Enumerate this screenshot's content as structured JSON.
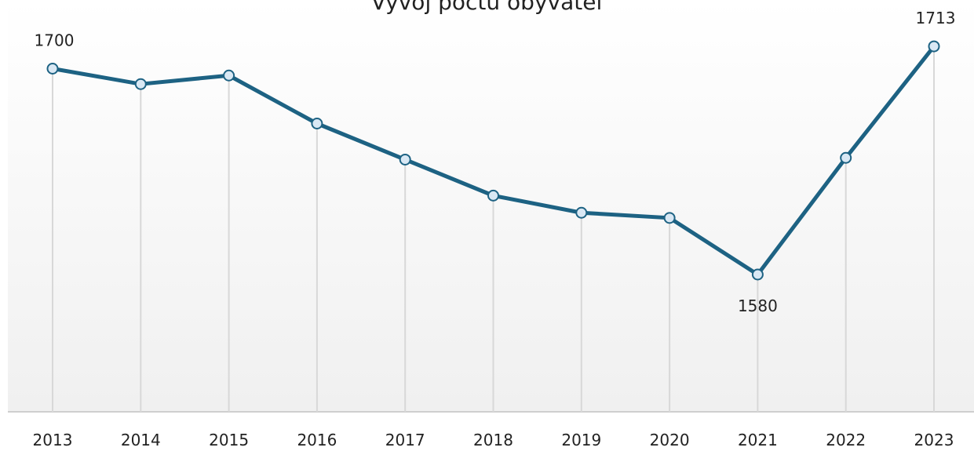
{
  "chart_data": {
    "type": "line",
    "title": "Vývoj počtu obyvatel",
    "categories": [
      "2013",
      "2014",
      "2015",
      "2016",
      "2017",
      "2018",
      "2019",
      "2020",
      "2021",
      "2022",
      "2023"
    ],
    "values": [
      1700,
      1691,
      1696,
      1668,
      1647,
      1626,
      1616,
      1613,
      1580,
      1648,
      1713
    ],
    "value_labels": [
      "1700",
      null,
      null,
      null,
      null,
      null,
      null,
      null,
      "1580",
      null,
      "1713"
    ],
    "color": "#1d6283",
    "ylim": [
      1500,
      1740
    ]
  }
}
